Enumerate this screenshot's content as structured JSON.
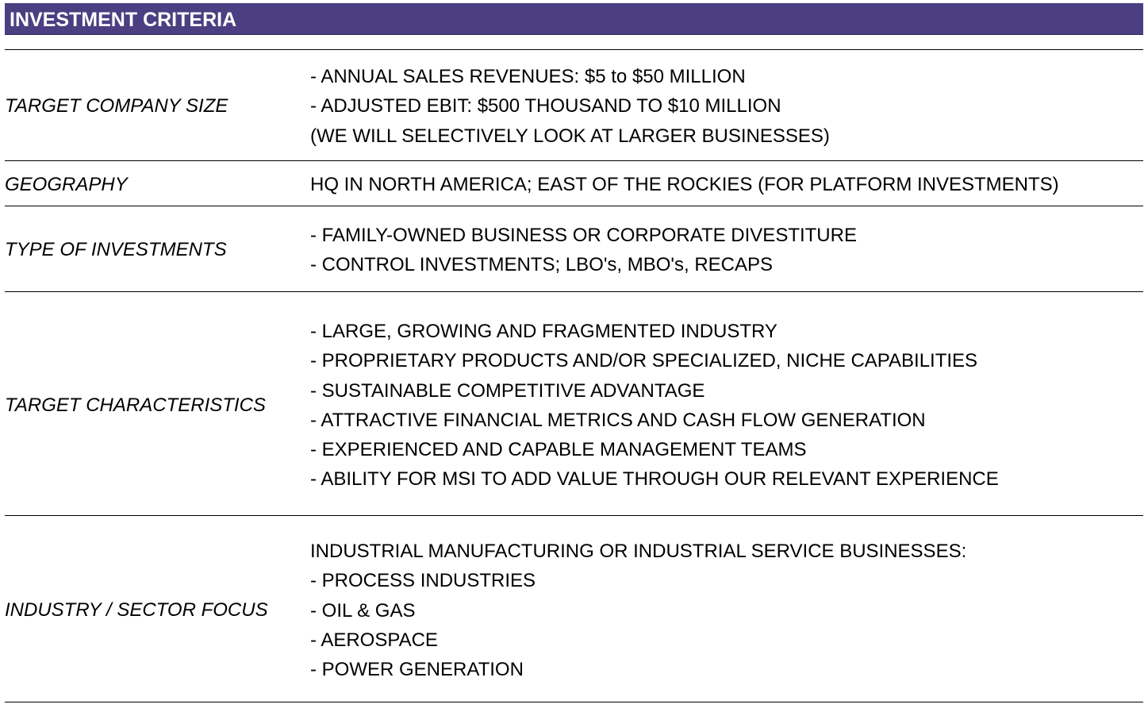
{
  "header": {
    "title": "INVESTMENT CRITERIA",
    "color": "#4b3f82"
  },
  "rows": [
    {
      "label": "TARGET COMPANY SIZE",
      "lines": [
        "- ANNUAL SALES REVENUES: $5 to $50 MILLION",
        "- ADJUSTED EBIT: $500 THOUSAND TO $10 MILLION",
        "(WE WILL SELECTIVELY LOOK AT LARGER BUSINESSES)"
      ]
    },
    {
      "label": "GEOGRAPHY",
      "lines": [
        "HQ IN NORTH AMERICA; EAST OF THE ROCKIES (FOR PLATFORM INVESTMENTS)"
      ]
    },
    {
      "label": "TYPE OF INVESTMENTS",
      "lines": [
        "- FAMILY-OWNED BUSINESS OR CORPORATE DIVESTITURE",
        "- CONTROL INVESTMENTS; LBO's, MBO's, RECAPS"
      ]
    },
    {
      "label": "TARGET CHARACTERISTICS",
      "lines": [
        "- LARGE, GROWING AND FRAGMENTED INDUSTRY",
        "- PROPRIETARY PRODUCTS AND/OR SPECIALIZED, NICHE CAPABILITIES",
        "- SUSTAINABLE COMPETITIVE ADVANTAGE",
        "- ATTRACTIVE FINANCIAL METRICS AND CASH FLOW GENERATION",
        "- EXPERIENCED AND CAPABLE MANAGEMENT TEAMS",
        "- ABILITY FOR MSI TO ADD VALUE THROUGH OUR RELEVANT EXPERIENCE"
      ]
    },
    {
      "label": "INDUSTRY / SECTOR FOCUS",
      "lines": [
        "INDUSTRIAL MANUFACTURING OR INDUSTRIAL SERVICE BUSINESSES:",
        "- PROCESS INDUSTRIES",
        "- OIL & GAS",
        "- AEROSPACE",
        "- POWER GENERATION"
      ]
    }
  ]
}
